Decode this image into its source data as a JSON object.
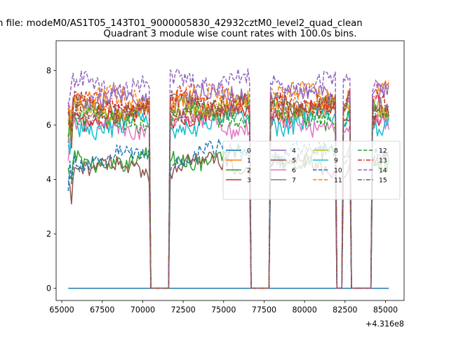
{
  "figure": {
    "suptitle": "n file: modeM0/AS1T05_143T01_9000005830_42932cztM0_level2_quad_clean"
  },
  "chart_data": {
    "type": "line",
    "title": "Quadrant 3 module wise count rates with 100.0s bins.",
    "xlabel": "",
    "ylabel": "",
    "x_offset_label": "+4.316e8",
    "xlim": [
      64650,
      86150
    ],
    "ylim": [
      -0.45,
      9.1
    ],
    "x_ticks": [
      65000,
      67500,
      70000,
      72500,
      75000,
      77500,
      80000,
      82500,
      85000
    ],
    "x_tick_labels": [
      "65000",
      "67500",
      "70000",
      "72500",
      "75000",
      "77500",
      "80000",
      "82500",
      "85000"
    ],
    "y_ticks": [
      0,
      2,
      4,
      6,
      8
    ],
    "y_tick_labels": [
      "0",
      "2",
      "4",
      "6",
      "8"
    ],
    "x_range": [
      65400,
      85200
    ],
    "bin_width": 100,
    "gaps": [
      [
        70500,
        71600
      ],
      [
        76700,
        77800
      ],
      [
        82900,
        84100
      ]
    ],
    "dips": [
      [
        82000,
        82300
      ]
    ],
    "legend": {
      "location": "center-right",
      "columns": 4
    },
    "series": [
      {
        "name": "0",
        "color": "#1f77b4",
        "dash": "solid",
        "level": 0.0,
        "amp": 0.0
      },
      {
        "name": "1",
        "color": "#ff7f0e",
        "dash": "solid",
        "level": 6.6,
        "amp": 0.35
      },
      {
        "name": "2",
        "color": "#2ca02c",
        "dash": "solid",
        "level": 4.7,
        "amp": 0.3
      },
      {
        "name": "3",
        "color": "#d62728",
        "dash": "solid",
        "level": 6.3,
        "amp": 0.35
      },
      {
        "name": "4",
        "color": "#9467bd",
        "dash": "solid",
        "level": 6.9,
        "amp": 0.35
      },
      {
        "name": "5",
        "color": "#8c564b",
        "dash": "solid",
        "level": 4.4,
        "amp": 0.3
      },
      {
        "name": "6",
        "color": "#e377c2",
        "dash": "solid",
        "level": 5.9,
        "amp": 0.35
      },
      {
        "name": "7",
        "color": "#7f7f7f",
        "dash": "solid",
        "level": 6.6,
        "amp": 0.35
      },
      {
        "name": "8",
        "color": "#bcbd22",
        "dash": "solid",
        "level": 6.5,
        "amp": 0.35
      },
      {
        "name": "9",
        "color": "#17becf",
        "dash": "solid",
        "level": 6.0,
        "amp": 0.35
      },
      {
        "name": "10",
        "color": "#1f77b4",
        "dash": "dashed",
        "level": 4.8,
        "amp": 0.3
      },
      {
        "name": "11",
        "color": "#ff7f0e",
        "dash": "dashed",
        "level": 6.9,
        "amp": 0.4
      },
      {
        "name": "12",
        "color": "#2ca02c",
        "dash": "dashed",
        "level": 6.2,
        "amp": 0.35
      },
      {
        "name": "13",
        "color": "#d62728",
        "dash": "dashdot",
        "level": 6.7,
        "amp": 0.35
      },
      {
        "name": "14",
        "color": "#9467bd",
        "dash": "dashed",
        "level": 7.5,
        "amp": 0.35
      },
      {
        "name": "15",
        "color": "#8c564b",
        "dash": "dashdot",
        "level": 6.5,
        "amp": 0.35
      }
    ]
  }
}
